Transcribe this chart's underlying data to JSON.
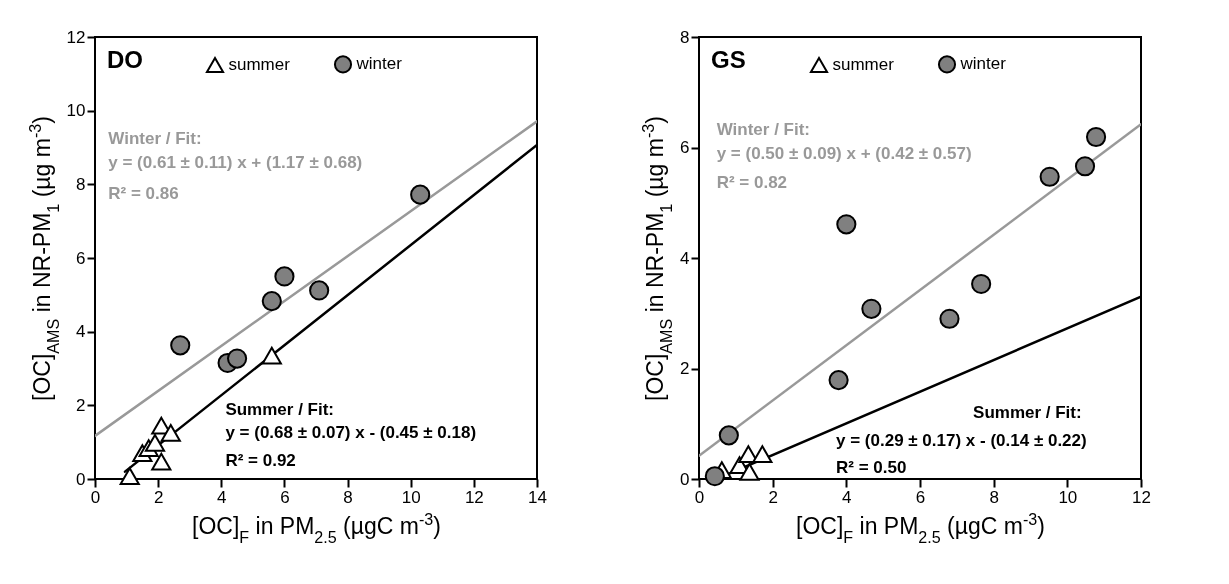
{
  "chart_data": [
    {
      "type": "scatter",
      "title": "DO",
      "xlabel": "[OC]$_{F}$ in PM$_{2.5}$ (µgC m$^{-3}$)",
      "ylabel": "[OC]$_{AMS}$ in NR-PM$_{1}$ (µg m$^{-3}$)",
      "xlim": [
        0,
        14
      ],
      "xticks": [
        0,
        2,
        4,
        6,
        8,
        10,
        12,
        14
      ],
      "ylim": [
        0,
        12
      ],
      "yticks": [
        0,
        2,
        4,
        6,
        8,
        10,
        12
      ],
      "legend": "top",
      "annotations": [
        "Winter / Fit:",
        "y = (0.61 ± 0.11) x + (1.17 ± 0.68)",
        "R² = 0.86",
        "Summer / Fit:",
        "y = (0.68 ± 0.07) x - (0.45 ± 0.18)",
        "R² = 0.92"
      ],
      "series": [
        {
          "type": "line",
          "color": "#999999",
          "x": [
            0,
            14
          ],
          "values": [
            1.17,
            9.71
          ]
        },
        {
          "type": "line",
          "color": "#000000",
          "x": [
            0.95,
            14
          ],
          "values": [
            0.2,
            9.07
          ]
        },
        {
          "type": "scatter",
          "name": "summer",
          "marker": "triangle",
          "color": "#000000",
          "x": [
            1.1,
            1.5,
            1.7,
            1.9,
            2.1,
            2.4,
            2.1,
            5.6
          ],
          "values": [
            0.08,
            0.7,
            0.84,
            0.98,
            1.45,
            1.25,
            0.47,
            3.35
          ]
        },
        {
          "type": "scatter",
          "name": "winter",
          "marker": "circle",
          "color": "#808080",
          "x": [
            2.7,
            4.2,
            4.5,
            5.6,
            6.0,
            7.1,
            10.3
          ],
          "values": [
            3.63,
            3.15,
            3.27,
            4.83,
            5.5,
            5.12,
            7.72
          ]
        }
      ]
    },
    {
      "type": "scatter",
      "title": "GS",
      "xlabel": "[OC]$_{F}$ in PM$_{2.5}$ (µgC m$^{-3}$)",
      "ylabel": "[OC]$_{AMS}$ in NR-PM$_{1}$ (µg m$^{-3}$)",
      "xlim": [
        0,
        12
      ],
      "xticks": [
        0,
        2,
        4,
        6,
        8,
        10,
        12
      ],
      "ylim": [
        0,
        8
      ],
      "yticks": [
        0,
        2,
        4,
        6,
        8
      ],
      "legend": "top",
      "annotations": [
        "Winter / Fit:",
        "y = (0.50 ± 0.09) x + (0.42 ± 0.57)",
        "R² = 0.82",
        "Summer / Fit:",
        "y = (0.29 ± 0.17) x - (0.14 ± 0.22)",
        "R² = 0.50"
      ],
      "series": [
        {
          "type": "line",
          "color": "#999999",
          "x": [
            0,
            12
          ],
          "values": [
            0.42,
            6.42
          ]
        },
        {
          "type": "line",
          "color": "#000000",
          "x": [
            0.55,
            12
          ],
          "values": [
            0.02,
            3.3
          ]
        },
        {
          "type": "scatter",
          "name": "summer",
          "marker": "triangle",
          "color": "#000000",
          "x": [
            0.62,
            1.1,
            1.34,
            1.37,
            1.72
          ],
          "values": [
            0.16,
            0.25,
            0.45,
            0.13,
            0.45
          ]
        },
        {
          "type": "scatter",
          "name": "winter",
          "marker": "circle",
          "color": "#808080",
          "x": [
            0.43,
            0.81,
            3.79,
            4.0,
            4.68,
            6.8,
            7.66,
            9.52,
            10.48,
            10.78
          ],
          "values": [
            0.05,
            0.79,
            1.79,
            4.61,
            3.08,
            2.9,
            3.53,
            5.47,
            5.66,
            6.19
          ]
        }
      ]
    }
  ]
}
